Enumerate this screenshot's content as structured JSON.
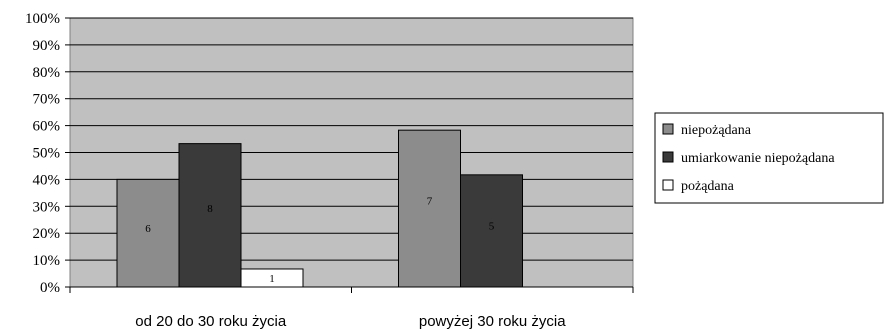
{
  "chart_data": {
    "type": "bar",
    "categories": [
      "od 20 do 30 roku życia",
      "powyżej 30 roku życia"
    ],
    "series": [
      {
        "name": "niepożądana",
        "color": "#8c8c8c",
        "values": [
          40,
          58.3
        ],
        "labels": [
          "6",
          "7"
        ]
      },
      {
        "name": "umiarkowanie niepożądana",
        "color": "#3a3a3a",
        "values": [
          53.3,
          41.7
        ],
        "labels": [
          "8",
          "5"
        ]
      },
      {
        "name": "pożądana",
        "color": "#ffffff",
        "values": [
          6.7,
          0
        ],
        "labels": [
          "1",
          ""
        ]
      }
    ],
    "y_ticks": [
      "0%",
      "10%",
      "20%",
      "30%",
      "40%",
      "50%",
      "60%",
      "70%",
      "80%",
      "90%",
      "100%"
    ],
    "ylim": [
      0,
      100
    ],
    "grid": true,
    "plot_background": "#c0c0c0",
    "legend_position": "right"
  }
}
